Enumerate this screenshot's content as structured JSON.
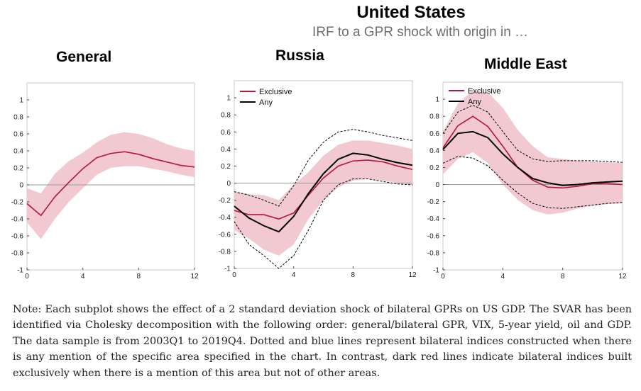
{
  "title": "United States",
  "subtitle": "IRF to a GPR shock with origin in …",
  "note": "Note: Each subplot shows the effect of a 2 standard deviation shock of bilateral GPRs on US GDP. The SVAR has been identified via Cholesky decomposition with the following order: general/bilateral GPR, VIX, 5-year yield, oil and GDP. The data sample is from 2003Q1 to 2019Q4. Dotted and blue lines represent bilateral indices constructed when there is any mention of the specific area specified in the chart. In contrast, dark red lines indicate bilateral indices built exclusively when there is a mention of this area but not of other areas.",
  "colors": {
    "exclusive": "#b5163a",
    "band": "#f2c9d1",
    "any": "#000000",
    "zero_line": "#9a9a9a"
  },
  "chart_data": [
    {
      "type": "line",
      "title": "General",
      "x": [
        0,
        1,
        2,
        3,
        4,
        5,
        6,
        7,
        8,
        9,
        10,
        11,
        12
      ],
      "xticks": [
        0,
        4,
        8,
        12
      ],
      "yticks": [
        -1,
        -0.8,
        -0.6,
        -0.4,
        -0.2,
        0,
        0.2,
        0.4,
        0.6,
        0.8,
        1
      ],
      "xlim": [
        0,
        12
      ],
      "ylim": [
        -1,
        1.2
      ],
      "series": [
        {
          "values": [
            -0.22,
            -0.36,
            -0.14,
            0.03,
            0.19,
            0.32,
            0.37,
            0.39,
            0.36,
            0.31,
            0.27,
            0.23,
            0.21
          ]
        }
      ],
      "bands": [
        {
          "lower": [
            -0.44,
            -0.64,
            -0.4,
            -0.2,
            -0.04,
            0.12,
            0.2,
            0.22,
            0.22,
            0.19,
            0.16,
            0.12,
            0.09
          ],
          "upper": [
            -0.04,
            -0.1,
            0.13,
            0.28,
            0.38,
            0.5,
            0.59,
            0.62,
            0.6,
            0.55,
            0.48,
            0.43,
            0.4
          ]
        }
      ],
      "legend": []
    },
    {
      "type": "line",
      "title": "Russia",
      "x": [
        0,
        1,
        2,
        3,
        4,
        5,
        6,
        7,
        8,
        9,
        10,
        11,
        12
      ],
      "xticks": [
        0,
        4,
        8,
        12
      ],
      "yticks": [
        -1,
        -0.8,
        -0.6,
        -0.4,
        -0.2,
        0,
        0.2,
        0.4,
        0.6,
        0.8,
        1
      ],
      "xlim": [
        0,
        12
      ],
      "ylim": [
        -1,
        1.2
      ],
      "series": [
        {
          "name": "Exclusive",
          "values": [
            -0.32,
            -0.37,
            -0.37,
            -0.42,
            -0.35,
            -0.14,
            0.06,
            0.2,
            0.26,
            0.27,
            0.25,
            0.2,
            0.16
          ]
        },
        {
          "name": "Any",
          "values": [
            -0.27,
            -0.41,
            -0.5,
            -0.57,
            -0.39,
            -0.12,
            0.11,
            0.28,
            0.35,
            0.33,
            0.28,
            0.24,
            0.21
          ]
        }
      ],
      "bands": [
        {
          "lower": [
            -0.55,
            -0.65,
            -0.78,
            -0.85,
            -0.72,
            -0.42,
            -0.2,
            -0.05,
            0.03,
            0.05,
            0.03,
            0.0,
            -0.02
          ],
          "upper": [
            -0.1,
            -0.13,
            -0.14,
            -0.2,
            -0.02,
            0.13,
            0.32,
            0.45,
            0.5,
            0.5,
            0.47,
            0.44,
            0.4
          ]
        }
      ],
      "dashed": [
        {
          "lower": [
            -0.45,
            -0.72,
            -0.85,
            -1.0,
            -0.85,
            -0.55,
            -0.2,
            -0.02,
            0.05,
            0.05,
            0.02,
            -0.01,
            -0.02
          ],
          "upper": [
            -0.1,
            -0.14,
            -0.2,
            -0.27,
            -0.03,
            0.27,
            0.48,
            0.6,
            0.63,
            0.6,
            0.56,
            0.53,
            0.5
          ]
        }
      ],
      "legend": [
        {
          "label": "Exclusive",
          "color": "#b5163a"
        },
        {
          "label": "Any",
          "color": "#000000"
        }
      ]
    },
    {
      "type": "line",
      "title": "Middle East",
      "x": [
        0,
        1,
        2,
        3,
        4,
        5,
        6,
        7,
        8,
        9,
        10,
        11,
        12
      ],
      "xticks": [
        0,
        4,
        8,
        12
      ],
      "yticks": [
        -1,
        -0.8,
        -0.6,
        -0.4,
        -0.2,
        0,
        0.2,
        0.4,
        0.6,
        0.8,
        1
      ],
      "xlim": [
        0,
        12
      ],
      "ylim": [
        -1,
        1.2
      ],
      "series": [
        {
          "name": "Exclusive",
          "values": [
            0.43,
            0.69,
            0.8,
            0.68,
            0.45,
            0.2,
            0.05,
            -0.03,
            -0.04,
            -0.02,
            0.01,
            0.01,
            0.0
          ]
        },
        {
          "name": "Any",
          "values": [
            0.41,
            0.6,
            0.62,
            0.55,
            0.36,
            0.2,
            0.07,
            0.02,
            -0.01,
            0.0,
            0.02,
            0.03,
            0.04
          ]
        }
      ],
      "bands": [
        {
          "lower": [
            0.12,
            0.3,
            0.38,
            0.25,
            0.0,
            -0.18,
            -0.3,
            -0.35,
            -0.33,
            -0.28,
            -0.25,
            -0.23,
            -0.22
          ],
          "upper": [
            0.62,
            0.95,
            1.1,
            1.08,
            0.9,
            0.64,
            0.45,
            0.32,
            0.3,
            0.28,
            0.27,
            0.26,
            0.25
          ]
        }
      ],
      "dashed": [
        {
          "lower": [
            0.25,
            0.33,
            0.31,
            0.22,
            0.05,
            -0.1,
            -0.22,
            -0.27,
            -0.28,
            -0.26,
            -0.24,
            -0.22,
            -0.21
          ],
          "upper": [
            0.6,
            0.85,
            0.93,
            0.85,
            0.62,
            0.4,
            0.3,
            0.27,
            0.28,
            0.28,
            0.28,
            0.27,
            0.26
          ]
        }
      ],
      "legend": [
        {
          "label": "Exclusive",
          "color": "#b5163a"
        },
        {
          "label": "Any",
          "color": "#000000"
        }
      ]
    }
  ]
}
